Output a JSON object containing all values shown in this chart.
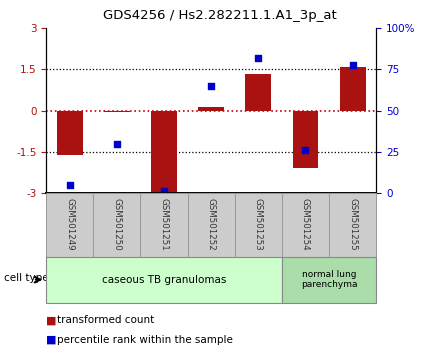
{
  "title": "GDS4256 / Hs2.282211.1.A1_3p_at",
  "samples": [
    "GSM501249",
    "GSM501250",
    "GSM501251",
    "GSM501252",
    "GSM501253",
    "GSM501254",
    "GSM501255"
  ],
  "transformed_counts": [
    -1.62,
    -0.05,
    -2.95,
    0.12,
    1.35,
    -2.1,
    1.58
  ],
  "percentile_ranks": [
    5,
    30,
    1,
    65,
    82,
    26,
    78
  ],
  "ylim_left": [
    -3,
    3
  ],
  "ylim_right": [
    0,
    100
  ],
  "left_ticks": [
    -3,
    -1.5,
    0,
    1.5,
    3
  ],
  "right_ticks": [
    0,
    25,
    50,
    75,
    100
  ],
  "right_tick_labels": [
    "0",
    "25",
    "50",
    "75",
    "100%"
  ],
  "bar_color": "#aa1111",
  "scatter_color": "#0000cc",
  "group1_label": "caseous TB granulomas",
  "group2_label": "normal lung\nparenchyma",
  "group1_color": "#ccffcc",
  "group2_color": "#aaddaa",
  "cell_type_label": "cell type",
  "legend_bar_label": "transformed count",
  "legend_scatter_label": "percentile rank within the sample",
  "sample_box_color": "#cccccc",
  "n_group1": 5,
  "n_group2": 2
}
